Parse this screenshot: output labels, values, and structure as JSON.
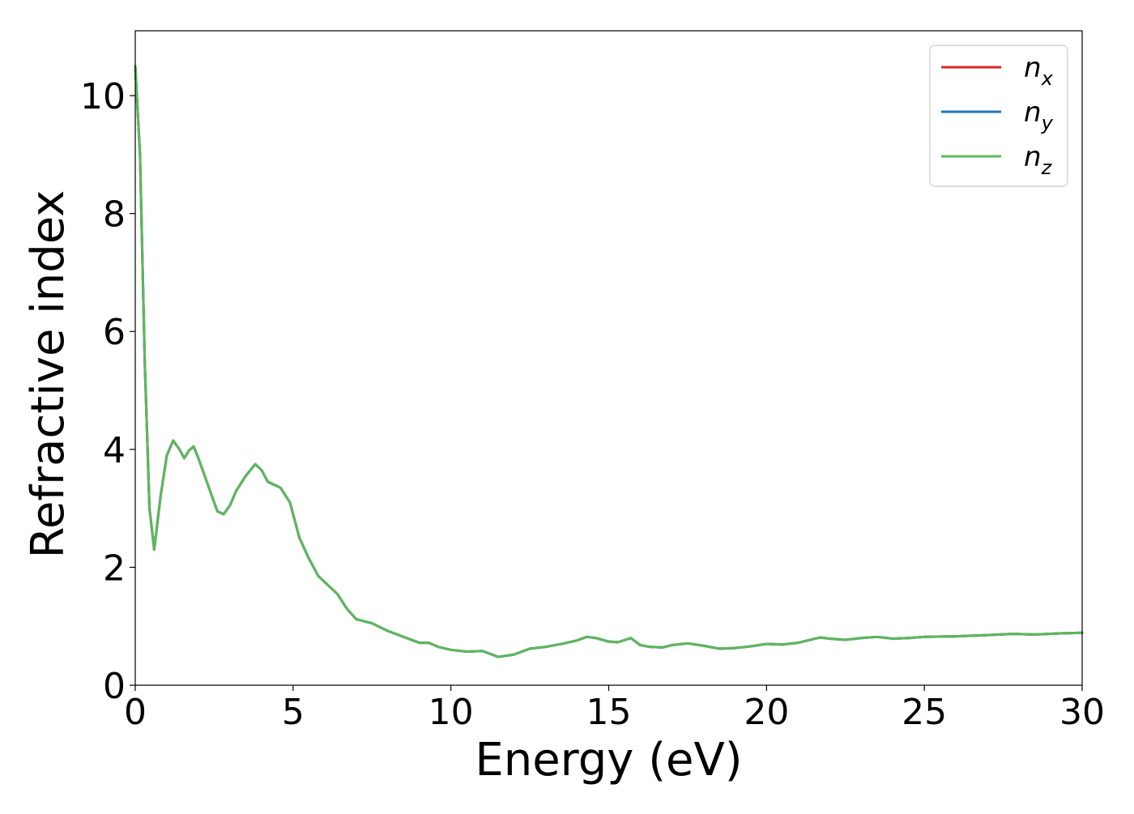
{
  "chart_data": {
    "type": "line",
    "title": "",
    "xlabel": "Energy (eV)",
    "ylabel": "Refractive index",
    "xlim": [
      0,
      30
    ],
    "ylim": [
      0,
      11.1
    ],
    "xticks": [
      0,
      5,
      10,
      15,
      20,
      25,
      30
    ],
    "yticks": [
      0,
      2,
      4,
      6,
      8,
      10
    ],
    "grid": false,
    "legend_position": "top-right",
    "series": [
      {
        "name": "n_x",
        "label_base": "n",
        "label_sub": "x",
        "color": "#d62728",
        "x": [
          0,
          0.15,
          0.3,
          0.45,
          0.6,
          0.8,
          1.0,
          1.2,
          1.4,
          1.55,
          1.7,
          1.85,
          2.0,
          2.3,
          2.6,
          2.8,
          3.0,
          3.2,
          3.5,
          3.8,
          4.0,
          4.2,
          4.6,
          4.9,
          5.2,
          5.5,
          5.8,
          6.0,
          6.4,
          6.7,
          7.0,
          7.5,
          8.0,
          8.5,
          9.0,
          9.3,
          9.6,
          10.0,
          10.5,
          11.0,
          11.5,
          12.0,
          12.5,
          13.0,
          13.5,
          14.0,
          14.3,
          14.6,
          15.0,
          15.3,
          15.7,
          16.0,
          16.3,
          16.7,
          17.0,
          17.5,
          18.0,
          18.5,
          19.0,
          19.5,
          20.0,
          20.5,
          21.0,
          21.7,
          22.0,
          22.5,
          23.0,
          23.5,
          24.0,
          24.5,
          25.0,
          26.0,
          27.0,
          27.8,
          28.5,
          29.3,
          30.0
        ],
        "y": [
          10.5,
          9.0,
          5.5,
          3.0,
          2.3,
          3.2,
          3.9,
          4.15,
          4.0,
          3.85,
          3.98,
          4.05,
          3.85,
          3.4,
          2.95,
          2.9,
          3.05,
          3.3,
          3.55,
          3.75,
          3.65,
          3.45,
          3.35,
          3.1,
          2.5,
          2.15,
          1.85,
          1.75,
          1.55,
          1.3,
          1.12,
          1.05,
          0.92,
          0.82,
          0.72,
          0.72,
          0.65,
          0.6,
          0.57,
          0.58,
          0.48,
          0.52,
          0.62,
          0.65,
          0.7,
          0.76,
          0.82,
          0.8,
          0.74,
          0.73,
          0.8,
          0.68,
          0.65,
          0.64,
          0.68,
          0.71,
          0.67,
          0.62,
          0.63,
          0.66,
          0.7,
          0.69,
          0.72,
          0.81,
          0.79,
          0.77,
          0.8,
          0.82,
          0.79,
          0.8,
          0.82,
          0.83,
          0.85,
          0.87,
          0.86,
          0.88,
          0.89
        ]
      },
      {
        "name": "n_y",
        "label_base": "n",
        "label_sub": "y",
        "color": "#1f77b4",
        "x": [
          0,
          0.15,
          0.3,
          0.45,
          0.6,
          0.8,
          1.0,
          1.2,
          1.4,
          1.55,
          1.7,
          1.85,
          2.0,
          2.3,
          2.6,
          2.8,
          3.0,
          3.2,
          3.5,
          3.8,
          4.0,
          4.2,
          4.6,
          4.9,
          5.2,
          5.5,
          5.8,
          6.0,
          6.4,
          6.7,
          7.0,
          7.5,
          8.0,
          8.5,
          9.0,
          9.3,
          9.6,
          10.0,
          10.5,
          11.0,
          11.5,
          12.0,
          12.5,
          13.0,
          13.5,
          14.0,
          14.3,
          14.6,
          15.0,
          15.3,
          15.7,
          16.0,
          16.3,
          16.7,
          17.0,
          17.5,
          18.0,
          18.5,
          19.0,
          19.5,
          20.0,
          20.5,
          21.0,
          21.7,
          22.0,
          22.5,
          23.0,
          23.5,
          24.0,
          24.5,
          25.0,
          26.0,
          27.0,
          27.8,
          28.5,
          29.3,
          30.0
        ],
        "y": [
          10.5,
          9.0,
          5.5,
          3.0,
          2.3,
          3.2,
          3.9,
          4.15,
          4.0,
          3.85,
          3.98,
          4.05,
          3.85,
          3.4,
          2.95,
          2.9,
          3.05,
          3.3,
          3.55,
          3.75,
          3.65,
          3.45,
          3.35,
          3.1,
          2.5,
          2.15,
          1.85,
          1.75,
          1.55,
          1.3,
          1.12,
          1.05,
          0.92,
          0.82,
          0.72,
          0.72,
          0.65,
          0.6,
          0.57,
          0.58,
          0.48,
          0.52,
          0.62,
          0.65,
          0.7,
          0.76,
          0.82,
          0.8,
          0.74,
          0.73,
          0.8,
          0.68,
          0.65,
          0.64,
          0.68,
          0.71,
          0.67,
          0.62,
          0.63,
          0.66,
          0.7,
          0.69,
          0.72,
          0.81,
          0.79,
          0.77,
          0.8,
          0.82,
          0.79,
          0.8,
          0.82,
          0.83,
          0.85,
          0.87,
          0.86,
          0.88,
          0.89
        ]
      },
      {
        "name": "n_z",
        "label_base": "n",
        "label_sub": "z",
        "color": "#5cb85c",
        "x": [
          0,
          0.15,
          0.3,
          0.45,
          0.6,
          0.8,
          1.0,
          1.2,
          1.4,
          1.55,
          1.7,
          1.85,
          2.0,
          2.3,
          2.6,
          2.8,
          3.0,
          3.2,
          3.5,
          3.8,
          4.0,
          4.2,
          4.6,
          4.9,
          5.2,
          5.5,
          5.8,
          6.0,
          6.4,
          6.7,
          7.0,
          7.5,
          8.0,
          8.5,
          9.0,
          9.3,
          9.6,
          10.0,
          10.5,
          11.0,
          11.5,
          12.0,
          12.5,
          13.0,
          13.5,
          14.0,
          14.3,
          14.6,
          15.0,
          15.3,
          15.7,
          16.0,
          16.3,
          16.7,
          17.0,
          17.5,
          18.0,
          18.5,
          19.0,
          19.5,
          20.0,
          20.5,
          21.0,
          21.7,
          22.0,
          22.5,
          23.0,
          23.5,
          24.0,
          24.5,
          25.0,
          26.0,
          27.0,
          27.8,
          28.5,
          29.3,
          30.0
        ],
        "y": [
          10.5,
          9.0,
          5.5,
          3.0,
          2.3,
          3.2,
          3.9,
          4.15,
          4.0,
          3.85,
          3.98,
          4.05,
          3.85,
          3.4,
          2.95,
          2.9,
          3.05,
          3.3,
          3.55,
          3.75,
          3.65,
          3.45,
          3.35,
          3.1,
          2.5,
          2.15,
          1.85,
          1.75,
          1.55,
          1.3,
          1.12,
          1.05,
          0.92,
          0.82,
          0.72,
          0.72,
          0.65,
          0.6,
          0.57,
          0.58,
          0.48,
          0.52,
          0.62,
          0.65,
          0.7,
          0.76,
          0.82,
          0.8,
          0.74,
          0.73,
          0.8,
          0.68,
          0.65,
          0.64,
          0.68,
          0.71,
          0.67,
          0.62,
          0.63,
          0.66,
          0.7,
          0.69,
          0.72,
          0.81,
          0.79,
          0.77,
          0.8,
          0.82,
          0.79,
          0.8,
          0.82,
          0.83,
          0.85,
          0.87,
          0.86,
          0.88,
          0.89
        ]
      }
    ]
  }
}
